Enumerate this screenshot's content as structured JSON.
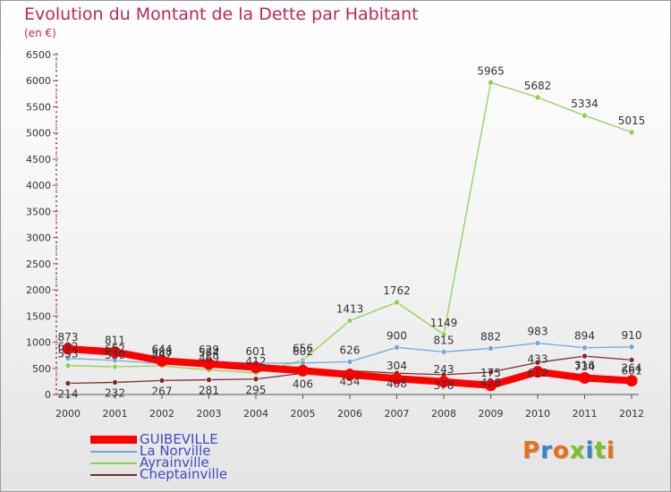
{
  "header": {
    "title": "Evolution du Montant de la Dette par Habitant",
    "unit": "(en €)"
  },
  "logo": {
    "text": "Proxiti",
    "letter_colors": [
      "#e8701a",
      "#2f86c8",
      "#e8701a",
      "#7bbf2b",
      "#2f86c8",
      "#7bbf2b",
      "#e8701a"
    ]
  },
  "chart_data": {
    "type": "line",
    "x": [
      "2000",
      "2001",
      "2002",
      "2003",
      "2004",
      "2005",
      "2006",
      "2007",
      "2008",
      "2009",
      "2010",
      "2011",
      "2012"
    ],
    "ylim": [
      0,
      6500
    ],
    "yticks": [
      0,
      500,
      1000,
      1500,
      2000,
      2500,
      3000,
      3500,
      4000,
      4500,
      5000,
      5500,
      6000,
      6500
    ],
    "grid": false,
    "legend_position": "bottom-left",
    "series": [
      {
        "name": "GUIBEVILLE",
        "color": "#ff0000",
        "values": [
          873,
          811,
          644,
          584,
          520,
          455,
          380,
          304,
          243,
          175,
          433,
          316,
          264
        ],
        "labels": [
          "873",
          "811",
          "644",
          "584",
          "",
          "",
          "",
          "304",
          "243",
          "175",
          "433",
          "316",
          "264"
        ]
      },
      {
        "name": "La Norville",
        "color": "#6fa8dc",
        "values": [
          692,
          652,
          588,
          629,
          601,
          602,
          626,
          900,
          815,
          882,
          983,
          894,
          910
        ],
        "labels": [
          "692",
          "652",
          "588",
          "629",
          "601",
          "602",
          "626",
          "900",
          "815",
          "882",
          "983",
          "894",
          "910"
        ]
      },
      {
        "name": "Ayrainville",
        "color": "#8fd14f",
        "values": [
          553,
          530,
          547,
          469,
          412,
          656,
          1413,
          1762,
          1149,
          5965,
          5682,
          5334,
          5015
        ],
        "labels": [
          "553",
          "530",
          "547",
          "469",
          "412",
          "656",
          "1413",
          "1762",
          "1149",
          "5965",
          "5682",
          "5334",
          "5015"
        ]
      },
      {
        "name": "Cheptainville",
        "color": "#7f2b2b",
        "values": [
          214,
          232,
          267,
          281,
          295,
          406,
          454,
          408,
          378,
          428,
          612,
          734,
          661
        ],
        "labels": [
          "214",
          "232",
          "267",
          "281",
          "295",
          "406",
          "454",
          "408",
          "378",
          "428",
          "612",
          "734",
          "661"
        ]
      }
    ]
  }
}
